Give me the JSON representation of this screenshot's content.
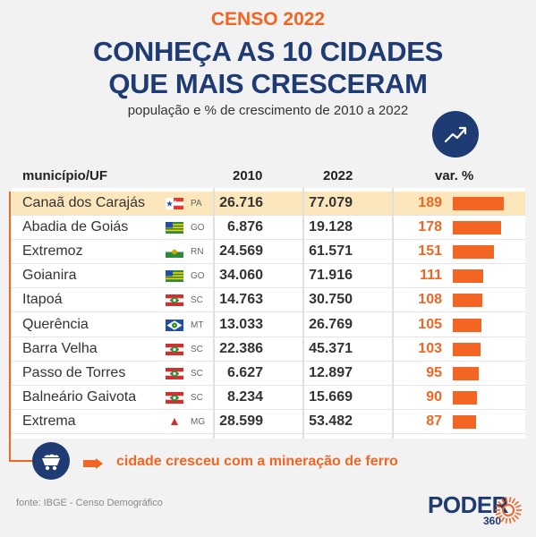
{
  "header": {
    "kicker": "CENSO 2022",
    "headline_line1": "CONHEÇA AS 10 CIDADES",
    "headline_line2": "QUE MAIS CRESCERAM",
    "subtitle": "população e % de crescimento  de 2010 a 2022",
    "badge_icon": "trend-up-icon"
  },
  "table": {
    "columns": {
      "municipio": "município/UF",
      "y2010": "2010",
      "y2022": "2022",
      "var": "var. %"
    },
    "rows": [
      {
        "city": "Canaã dos Carajás",
        "uf": "PA",
        "flag": "flag-pa-icon",
        "v2010": "26.716",
        "v2022": "77.079",
        "pct": "189",
        "pct_value": 189,
        "highlight": true
      },
      {
        "city": "Abadia de Goiás",
        "uf": "GO",
        "flag": "flag-go-icon",
        "v2010": "6.876",
        "v2022": "19.128",
        "pct": "178",
        "pct_value": 178,
        "highlight": false
      },
      {
        "city": "Extremoz",
        "uf": "RN",
        "flag": "flag-rn-icon",
        "v2010": "24.569",
        "v2022": "61.571",
        "pct": "151",
        "pct_value": 151,
        "highlight": false
      },
      {
        "city": "Goianira",
        "uf": "GO",
        "flag": "flag-go-icon",
        "v2010": "34.060",
        "v2022": "71.916",
        "pct": "111",
        "pct_value": 111,
        "highlight": false
      },
      {
        "city": "Itapoá",
        "uf": "SC",
        "flag": "flag-sc-icon",
        "v2010": "14.763",
        "v2022": "30.750",
        "pct": "108",
        "pct_value": 108,
        "highlight": false
      },
      {
        "city": "Querência",
        "uf": "MT",
        "flag": "flag-mt-icon",
        "v2010": "13.033",
        "v2022": "26.769",
        "pct": "105",
        "pct_value": 105,
        "highlight": false
      },
      {
        "city": "Barra Velha",
        "uf": "SC",
        "flag": "flag-sc-icon",
        "v2010": "22.386",
        "v2022": "45.371",
        "pct": "103",
        "pct_value": 103,
        "highlight": false
      },
      {
        "city": "Passo de Torres",
        "uf": "SC",
        "flag": "flag-sc-icon",
        "v2010": "6.627",
        "v2022": "12.897",
        "pct": "95",
        "pct_value": 95,
        "highlight": false
      },
      {
        "city": "Balneário Gaivota",
        "uf": "SC",
        "flag": "flag-sc-icon",
        "v2010": "8.234",
        "v2022": "15.669",
        "pct": "90",
        "pct_value": 90,
        "highlight": false
      },
      {
        "city": "Extrema",
        "uf": "MG",
        "flag": "flag-mg-icon",
        "v2010": "28.599",
        "v2022": "53.482",
        "pct": "87",
        "pct_value": 87,
        "highlight": false
      }
    ]
  },
  "note": {
    "text": "cidade cresceu com a mineração de ferro",
    "icon": "mine-cart-icon"
  },
  "source": "fonte: IBGE - Censo Demográfico",
  "logo": {
    "text": "PODER",
    "number": "360"
  },
  "colors": {
    "accent": "#f26522",
    "navy": "#1f3b73",
    "highlight": "#fce7bc"
  }
}
